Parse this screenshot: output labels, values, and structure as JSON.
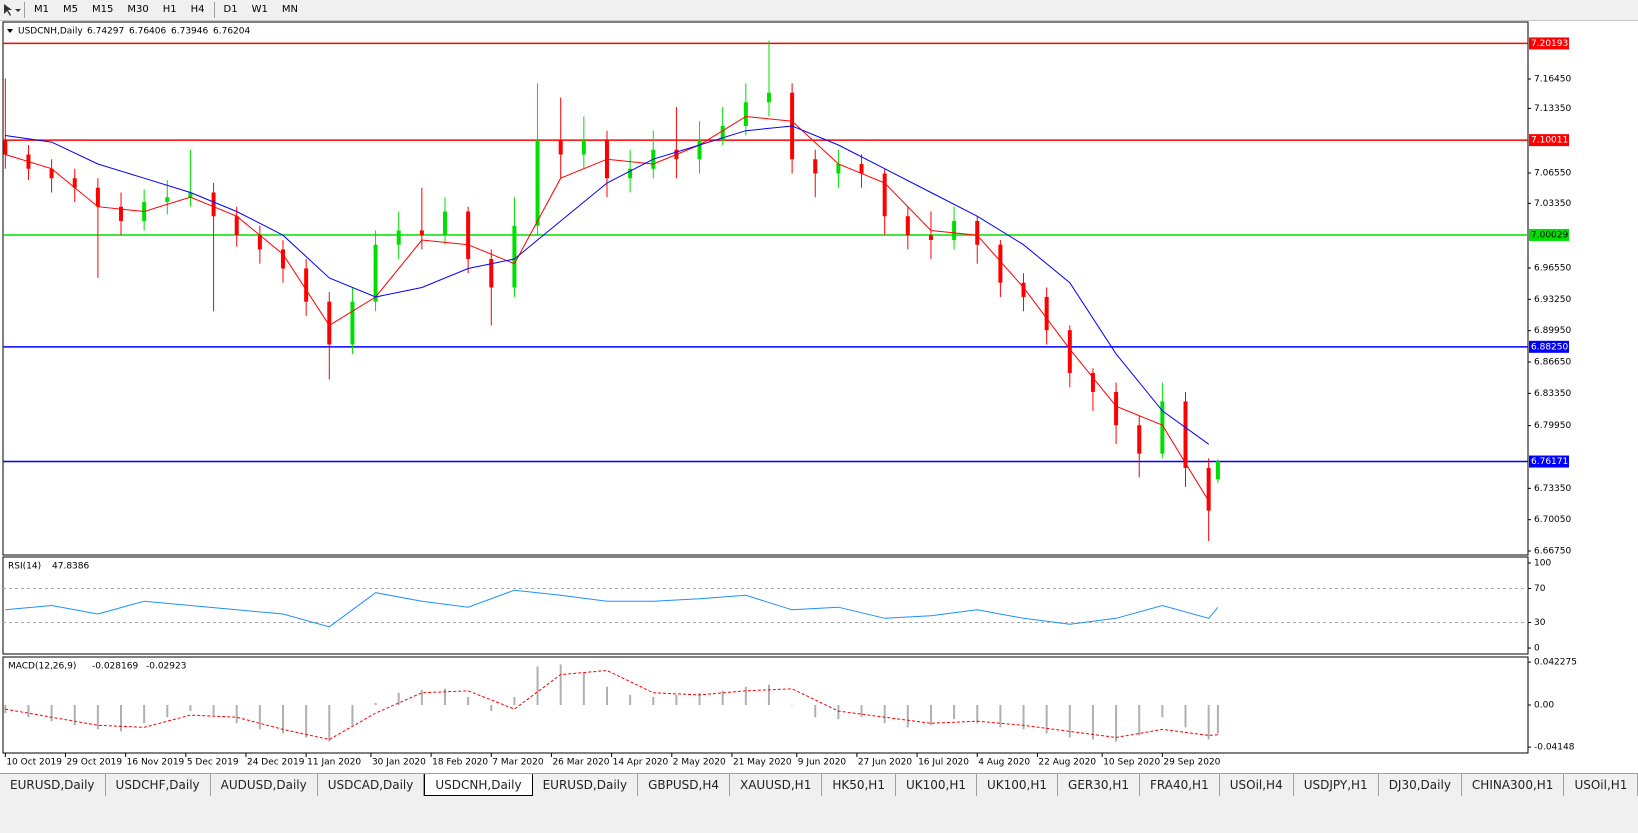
{
  "toolbar": {
    "buttons": [
      "M1",
      "M5",
      "M15",
      "M30",
      "H1",
      "H4",
      "D1",
      "W1",
      "MN"
    ]
  },
  "chart_data": [
    {
      "type": "candlestick",
      "title": "USDCNH,Daily",
      "up_color": "#00e000",
      "down_color": "#ff0000",
      "x": [
        0,
        5,
        10,
        15,
        20,
        25,
        30,
        35,
        40,
        45,
        50,
        55,
        60,
        65,
        70,
        75,
        80,
        85,
        90,
        95,
        100,
        105,
        110,
        115,
        120,
        125,
        130,
        135,
        140,
        145,
        150,
        155,
        160,
        165,
        170,
        175,
        180,
        185,
        190,
        195,
        200,
        205,
        210,
        215,
        220,
        225,
        230,
        235,
        240,
        245,
        250,
        255,
        260,
        262
      ],
      "open": [
        7.1,
        7.085,
        7.07,
        7.06,
        7.05,
        7.03,
        7.015,
        7.035,
        7.04,
        7.045,
        7.02,
        7.0,
        6.985,
        6.965,
        6.93,
        6.885,
        6.93,
        6.99,
        7.005,
        7.0,
        7.025,
        6.975,
        6.945,
        7.01,
        7.1,
        7.085,
        7.1,
        7.06,
        7.07,
        7.09,
        7.08,
        7.1,
        7.115,
        7.14,
        7.15,
        7.08,
        7.065,
        7.075,
        7.065,
        7.02,
        7.0,
        6.995,
        7.015,
        6.99,
        6.95,
        6.935,
        6.9,
        6.855,
        6.835,
        6.8,
        6.77,
        6.825,
        6.755,
        6.74297
      ],
      "high": [
        7.165,
        7.095,
        7.08,
        7.07,
        7.06,
        7.045,
        7.048,
        7.058,
        7.09,
        7.055,
        7.03,
        7.01,
        6.995,
        6.975,
        6.94,
        6.945,
        7.005,
        7.025,
        7.05,
        7.04,
        7.03,
        6.985,
        7.04,
        7.16,
        7.145,
        7.125,
        7.11,
        7.09,
        7.11,
        7.135,
        7.12,
        7.135,
        7.16,
        7.205,
        7.16,
        7.09,
        7.09,
        7.085,
        7.07,
        7.03,
        7.025,
        7.03,
        7.02,
        6.995,
        6.96,
        6.945,
        6.905,
        6.86,
        6.845,
        6.81,
        6.845,
        6.835,
        6.765,
        6.76406
      ],
      "low": [
        7.07,
        7.058,
        7.045,
        7.035,
        6.955,
        7.0,
        7.005,
        7.022,
        7.03,
        6.92,
        6.988,
        6.97,
        6.95,
        6.915,
        6.848,
        6.875,
        6.92,
        6.975,
        6.985,
        6.99,
        6.96,
        6.905,
        6.935,
        7.0,
        7.06,
        7.07,
        7.04,
        7.045,
        7.06,
        7.06,
        7.065,
        7.095,
        7.105,
        7.125,
        7.065,
        7.04,
        7.05,
        7.05,
        7.0,
        6.985,
        6.975,
        6.985,
        6.97,
        6.935,
        6.92,
        6.885,
        6.84,
        6.815,
        6.78,
        6.745,
        6.765,
        6.735,
        6.678,
        6.73946
      ],
      "close": [
        7.085,
        7.07,
        7.06,
        7.05,
        7.03,
        7.015,
        7.035,
        7.04,
        7.045,
        7.02,
        7.0,
        6.985,
        6.965,
        6.93,
        6.885,
        6.93,
        6.99,
        7.005,
        7.0,
        7.025,
        6.975,
        6.945,
        7.01,
        7.1,
        7.085,
        7.1,
        7.06,
        7.07,
        7.09,
        7.08,
        7.1,
        7.115,
        7.14,
        7.15,
        7.08,
        7.065,
        7.075,
        7.065,
        7.02,
        7.0,
        6.995,
        7.015,
        6.99,
        6.95,
        6.935,
        6.9,
        6.855,
        6.835,
        6.8,
        6.77,
        6.825,
        6.755,
        6.71,
        6.76204
      ],
      "overlays": [
        {
          "color": "#ff0000",
          "x": [
            0,
            10,
            20,
            30,
            40,
            50,
            60,
            70,
            80,
            90,
            100,
            110,
            120,
            130,
            140,
            150,
            160,
            170,
            180,
            190,
            200,
            210,
            220,
            230,
            240,
            250,
            260
          ],
          "values": [
            7.085,
            7.07,
            7.03,
            7.025,
            7.04,
            7.02,
            6.98,
            6.905,
            6.935,
            6.995,
            6.99,
            6.97,
            7.06,
            7.08,
            7.075,
            7.095,
            7.125,
            7.12,
            7.075,
            7.055,
            7.005,
            7.0,
            6.945,
            6.88,
            6.82,
            6.8,
            6.72
          ]
        },
        {
          "color": "#0000ff",
          "x": [
            0,
            10,
            20,
            30,
            40,
            50,
            60,
            70,
            80,
            90,
            100,
            110,
            120,
            130,
            140,
            150,
            160,
            170,
            180,
            190,
            200,
            210,
            220,
            230,
            240,
            250,
            260
          ],
          "values": [
            7.105,
            7.098,
            7.075,
            7.06,
            7.045,
            7.025,
            7.0,
            6.955,
            6.935,
            6.945,
            6.965,
            6.975,
            7.015,
            7.055,
            7.08,
            7.095,
            7.11,
            7.115,
            7.095,
            7.07,
            7.045,
            7.02,
            6.99,
            6.95,
            6.875,
            6.815,
            6.78
          ]
        }
      ],
      "hlines": [
        {
          "value": 7.20193,
          "color": "#ff0000"
        },
        {
          "value": 7.10011,
          "color": "#ff0000"
        },
        {
          "value": 7.00029,
          "label": "7.00029",
          "color": "#00e000"
        },
        {
          "value": 6.8825,
          "label": "6.88250",
          "color": "#0000ff"
        },
        {
          "value": 6.76171,
          "color": "#0000ff"
        }
      ],
      "xlim": [
        -0.5,
        329
      ],
      "ylim": [
        6.6633,
        7.2245
      ],
      "yticks": [
        {
          "value": 7.1645,
          "label": "7.16450"
        },
        {
          "value": 7.1335,
          "label": "7.13350"
        },
        {
          "value": 7.0655,
          "label": "7.06550"
        },
        {
          "value": 7.0335,
          "label": "7.03350"
        },
        {
          "value": 6.9655,
          "label": "6.96550"
        },
        {
          "value": 6.9325,
          "label": "6.93250"
        },
        {
          "value": 6.8995,
          "label": "6.89950"
        },
        {
          "value": 6.8665,
          "label": "6.86650"
        },
        {
          "value": 6.8335,
          "label": "6.83350"
        },
        {
          "value": 6.7995,
          "label": "6.79950"
        },
        {
          "value": 6.7335,
          "label": "6.73350"
        },
        {
          "value": 6.7005,
          "label": "6.70050"
        },
        {
          "value": 6.6675,
          "label": "6.66750"
        }
      ],
      "xticks": [
        {
          "value": 0,
          "label": "10 Oct 2019"
        },
        {
          "value": 13,
          "label": "29 Oct 2019"
        },
        {
          "value": 26,
          "label": "16 Nov 2019"
        },
        {
          "value": 39,
          "label": "5 Dec 2019"
        },
        {
          "value": 52,
          "label": "24 Dec 2019"
        },
        {
          "value": 65,
          "label": "11 Jan 2020"
        },
        {
          "value": 79,
          "label": "30 Jan 2020"
        },
        {
          "value": 92,
          "label": "18 Feb 2020"
        },
        {
          "value": 105,
          "label": "7 Mar 2020"
        },
        {
          "value": 118,
          "label": "26 Mar 2020"
        },
        {
          "value": 131,
          "label": "14 Apr 2020"
        },
        {
          "value": 144,
          "label": "2 May 2020"
        },
        {
          "value": 157,
          "label": "21 May 2020"
        },
        {
          "value": 171,
          "label": "9 Jun 2020"
        },
        {
          "value": 184,
          "label": "27 Jun 2020"
        },
        {
          "value": 197,
          "label": "16 Jul 2020"
        },
        {
          "value": 210,
          "label": "4 Aug 2020"
        },
        {
          "value": 223,
          "label": "22 Aug 2020"
        },
        {
          "value": 237,
          "label": "10 Sep 2020"
        },
        {
          "value": 250,
          "label": "29 Sep 2020"
        }
      ]
    },
    {
      "type": "line",
      "title": "RSI(14)",
      "color": "#1e90ff",
      "x": [
        0,
        10,
        20,
        30,
        40,
        50,
        60,
        70,
        80,
        90,
        100,
        110,
        120,
        130,
        140,
        150,
        160,
        170,
        180,
        190,
        200,
        210,
        220,
        230,
        240,
        250,
        260,
        262
      ],
      "values": [
        45,
        50,
        40,
        55,
        50,
        45,
        40,
        25,
        65,
        55,
        48,
        68,
        62,
        55,
        55,
        58,
        62,
        45,
        48,
        35,
        38,
        45,
        35,
        28,
        35,
        50,
        35,
        47.8386
      ],
      "xlim": [
        -0.5,
        329
      ],
      "ylim": [
        -7,
        107
      ],
      "yticks": [
        100,
        70,
        30,
        0
      ],
      "levels": [
        70,
        30
      ]
    },
    {
      "type": "macd",
      "title": "MACD(12,26,9)",
      "histogram": {
        "color": "#b0b0b0",
        "x": [
          0,
          5,
          10,
          15,
          20,
          25,
          30,
          35,
          40,
          45,
          50,
          55,
          60,
          65,
          70,
          75,
          80,
          85,
          90,
          95,
          100,
          105,
          110,
          115,
          120,
          125,
          130,
          135,
          140,
          145,
          150,
          155,
          160,
          165,
          170,
          175,
          180,
          185,
          190,
          195,
          200,
          205,
          210,
          215,
          220,
          225,
          230,
          235,
          240,
          245,
          250,
          255,
          260,
          262
        ],
        "values": [
          -0.008,
          -0.012,
          -0.016,
          -0.02,
          -0.024,
          -0.026,
          -0.018,
          -0.012,
          -0.006,
          -0.01,
          -0.018,
          -0.024,
          -0.028,
          -0.032,
          -0.036,
          -0.02,
          0.002,
          0.012,
          0.015,
          0.016,
          0.008,
          -0.006,
          0.008,
          0.038,
          0.04,
          0.032,
          0.018,
          0.01,
          0.008,
          0.01,
          0.012,
          0.014,
          0.018,
          0.02,
          0.0,
          -0.012,
          -0.014,
          -0.012,
          -0.018,
          -0.022,
          -0.02,
          -0.014,
          -0.018,
          -0.022,
          -0.024,
          -0.028,
          -0.032,
          -0.034,
          -0.036,
          -0.03,
          -0.012,
          -0.022,
          -0.034,
          -0.028169
        ]
      },
      "signal": {
        "color": "#ff0000",
        "x": [
          0,
          10,
          20,
          30,
          40,
          50,
          60,
          70,
          80,
          90,
          100,
          110,
          120,
          130,
          140,
          150,
          160,
          170,
          180,
          190,
          200,
          210,
          220,
          230,
          240,
          250,
          260,
          262
        ],
        "values": [
          -0.004,
          -0.012,
          -0.02,
          -0.022,
          -0.01,
          -0.012,
          -0.024,
          -0.034,
          -0.008,
          0.012,
          0.014,
          -0.004,
          0.03,
          0.034,
          0.012,
          0.01,
          0.014,
          0.016,
          -0.006,
          -0.012,
          -0.018,
          -0.016,
          -0.02,
          -0.026,
          -0.032,
          -0.024,
          -0.03,
          -0.02923
        ]
      },
      "xlim": [
        -0.5,
        329
      ],
      "ylim": [
        -0.0473,
        0.0473
      ],
      "yticks": [
        0.042275,
        {
          "value": 0,
          "label": "0.00"
        },
        -0.04148
      ]
    }
  ],
  "tabs": [
    "EURUSD,Daily",
    "USDCHF,Daily",
    "AUDUSD,Daily",
    "USDCAD,Daily",
    "USDCNH,Daily",
    "EURUSD,Daily",
    "GBPUSD,H4",
    "XAUUSD,H1",
    "HK50,H1",
    "UK100,H1",
    "UK100,H1",
    "GER30,H1",
    "FRA40,H1",
    "USOil,H4",
    "USDJPY,H1",
    "DJ30,Daily",
    "CHINA300,H1",
    "USOil,H1"
  ],
  "active_tab": 4
}
